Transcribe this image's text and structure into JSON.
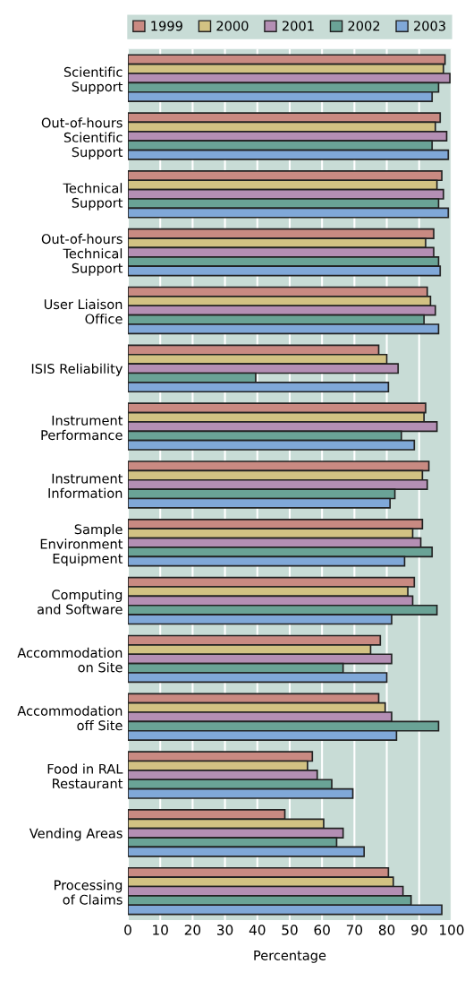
{
  "chart_data": {
    "type": "bar",
    "orientation": "horizontal",
    "xlabel": "Percentage",
    "categories": [
      "Scientific\nSupport",
      "Out-of-hours\nScientific\nSupport",
      "Technical\nSupport",
      "Out-of-hours\nTechnical\nSupport",
      "User Liaison\nOffice",
      "ISIS Reliability",
      "Instrument\nPerformance",
      "Instrument\nInformation",
      "Sample\nEnvironment\nEquipment",
      "Computing\nand Software",
      "Accommodation\non Site",
      "Accommodation\noff Site",
      "Food in RAL\nRestaurant",
      "Vending Areas",
      "Processing\nof Claims"
    ],
    "series": [
      {
        "name": "1999",
        "color": "#c98a82",
        "values": [
          98,
          96.5,
          97,
          94.5,
          92.5,
          77.5,
          92,
          93,
          91,
          88.5,
          78,
          77.5,
          57,
          48.5,
          80.5
        ]
      },
      {
        "name": "2000",
        "color": "#d2c283",
        "values": [
          97.5,
          95,
          95.5,
          92,
          93.5,
          80,
          91.5,
          91,
          88,
          86.5,
          75,
          79.5,
          55.5,
          60.5,
          82
        ]
      },
      {
        "name": "2001",
        "color": "#b48fb4",
        "values": [
          99.5,
          98.5,
          97.5,
          94.5,
          95,
          83.5,
          95.5,
          92.5,
          90.5,
          88,
          81.5,
          81.5,
          58.5,
          66.5,
          85
        ]
      },
      {
        "name": "2002",
        "color": "#6aa396",
        "values": [
          96,
          94,
          96,
          96,
          91.5,
          39.5,
          84.5,
          82.5,
          94,
          95.5,
          66.5,
          96,
          63,
          64.5,
          87.5
        ]
      },
      {
        "name": "2003",
        "color": "#80a8d8",
        "values": [
          94,
          99,
          99,
          96.5,
          96,
          80.5,
          88.5,
          81,
          85.5,
          81.5,
          80,
          83,
          69.5,
          73,
          97
        ]
      }
    ],
    "xlim": [
      0,
      100
    ],
    "xticks": [
      0,
      10,
      20,
      30,
      40,
      50,
      60,
      70,
      80,
      90,
      100
    ],
    "grid": "x",
    "legend": "top"
  }
}
